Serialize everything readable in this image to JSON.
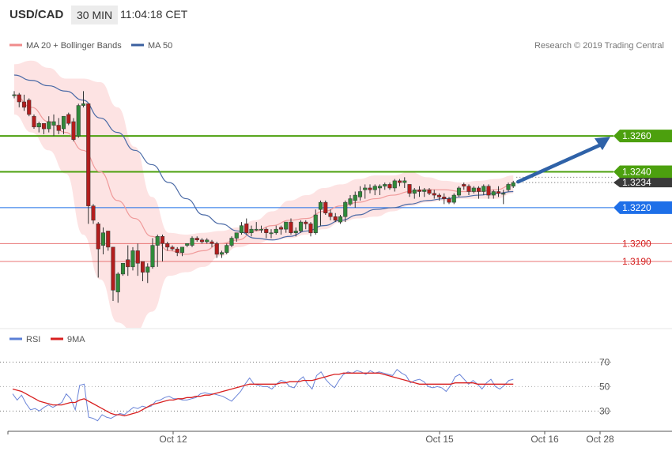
{
  "header": {
    "symbol": "USD/CAD",
    "timeframe": "30 MIN",
    "time": "11:04:18 CET"
  },
  "legend_main": [
    {
      "label": "MA 20 + Bollinger Bands",
      "color": "#f08c8c"
    },
    {
      "label": "MA 50",
      "color": "#3a5f9f"
    }
  ],
  "research_credit": "Research © 2019 Trading Central",
  "legend_rsi": [
    {
      "label": "RSI",
      "color": "#5b7fd6"
    },
    {
      "label": "9MA",
      "color": "#d81f1f"
    }
  ],
  "colors": {
    "green_level": "#4ca00e",
    "blue_level": "#1e6fe8",
    "red_level": "#e87474",
    "arrow": "#2f62a8",
    "candle": "#b31d1d",
    "candle_up": "#2f8a3a",
    "band_fill": "#fde3e3",
    "rsi": "#6b85d8",
    "rsi_ma": "#d81f1f",
    "last_price_badge": "#3a3a3a"
  },
  "chart_data": [
    {
      "type": "candlestick",
      "title": "USD/CAD 30 MIN",
      "ylim": [
        1.3153,
        1.3305
      ],
      "x_tick_labels": [
        "Oct 12",
        "Oct 15",
        "Oct 16",
        "Oct 28"
      ],
      "levels": [
        {
          "value": 1.326,
          "label": "1.3260",
          "kind": "resistance",
          "color": "green"
        },
        {
          "value": 1.324,
          "label": "1.3240",
          "kind": "resistance",
          "color": "green"
        },
        {
          "value": 1.3234,
          "label": "1.3234",
          "kind": "last_price",
          "color": "dark"
        },
        {
          "value": 1.322,
          "label": "1.3220",
          "kind": "pivot",
          "color": "blue"
        },
        {
          "value": 1.32,
          "label": "1.3200",
          "kind": "support",
          "color": "red"
        },
        {
          "value": 1.319,
          "label": "1.3190",
          "kind": "support",
          "color": "red"
        }
      ],
      "ohlc": [
        [
          1.3283,
          1.3285,
          1.3281,
          1.3283
        ],
        [
          1.3283,
          1.3284,
          1.3276,
          1.3279
        ],
        [
          1.3279,
          1.3283,
          1.3274,
          1.3276
        ],
        [
          1.328,
          1.3281,
          1.3271,
          1.3272
        ],
        [
          1.3271,
          1.3272,
          1.3264,
          1.3265
        ],
        [
          1.3265,
          1.3268,
          1.3262,
          1.3267
        ],
        [
          1.3267,
          1.3267,
          1.3261,
          1.3264
        ],
        [
          1.3264,
          1.3271,
          1.3262,
          1.3268
        ],
        [
          1.3266,
          1.3272,
          1.326,
          1.3268
        ],
        [
          1.3266,
          1.327,
          1.3261,
          1.3263
        ],
        [
          1.3264,
          1.3271,
          1.3261,
          1.3271
        ],
        [
          1.3272,
          1.3273,
          1.3266,
          1.3267
        ],
        [
          1.3268,
          1.327,
          1.3257,
          1.3258
        ],
        [
          1.326,
          1.3278,
          1.3259,
          1.3277
        ],
        [
          1.3277,
          1.3285,
          1.3276,
          1.3278
        ],
        [
          1.3278,
          1.3278,
          1.3211,
          1.3221
        ],
        [
          1.3221,
          1.3222,
          1.3211,
          1.3213
        ],
        [
          1.3211,
          1.3212,
          1.3181,
          1.3197
        ],
        [
          1.3199,
          1.3209,
          1.3194,
          1.3206
        ],
        [
          1.3207,
          1.3207,
          1.3196,
          1.3198
        ],
        [
          1.3198,
          1.3198,
          1.3168,
          1.3174
        ],
        [
          1.3173,
          1.3184,
          1.3167,
          1.3183
        ],
        [
          1.3183,
          1.3189,
          1.3182,
          1.3189
        ],
        [
          1.3191,
          1.3199,
          1.3182,
          1.3187
        ],
        [
          1.3187,
          1.3198,
          1.3185,
          1.3196
        ],
        [
          1.3196,
          1.32,
          1.3182,
          1.3189
        ],
        [
          1.319,
          1.319,
          1.3179,
          1.3184
        ],
        [
          1.3184,
          1.3189,
          1.3178,
          1.3187
        ],
        [
          1.3187,
          1.3203,
          1.3186,
          1.3199
        ],
        [
          1.3199,
          1.3205,
          1.3187,
          1.3204
        ],
        [
          1.3204,
          1.3205,
          1.319,
          1.32
        ],
        [
          1.32,
          1.3201,
          1.3196,
          1.3198
        ],
        [
          1.3198,
          1.3199,
          1.3196,
          1.3197
        ],
        [
          1.3197,
          1.3198,
          1.3193,
          1.3195
        ],
        [
          1.3195,
          1.3198,
          1.3193,
          1.3198
        ],
        [
          1.3199,
          1.32,
          1.3198,
          1.32
        ],
        [
          1.3199,
          1.3204,
          1.3198,
          1.3203
        ],
        [
          1.3203,
          1.3204,
          1.3201,
          1.3202
        ],
        [
          1.3202,
          1.3203,
          1.32,
          1.3201
        ],
        [
          1.3201,
          1.3203,
          1.32,
          1.3202
        ],
        [
          1.3201,
          1.3202,
          1.3198,
          1.32
        ],
        [
          1.32,
          1.3201,
          1.3192,
          1.3194
        ],
        [
          1.3194,
          1.3196,
          1.3192,
          1.3195
        ],
        [
          1.3195,
          1.32,
          1.3194,
          1.3199
        ],
        [
          1.3199,
          1.3204,
          1.3198,
          1.3203
        ],
        [
          1.3203,
          1.3206,
          1.3201,
          1.3206
        ],
        [
          1.3206,
          1.3212,
          1.3205,
          1.321
        ],
        [
          1.3211,
          1.3214,
          1.3205,
          1.3206
        ],
        [
          1.3206,
          1.321,
          1.3204,
          1.3208
        ],
        [
          1.3208,
          1.3212,
          1.3207,
          1.3208
        ],
        [
          1.3208,
          1.321,
          1.3206,
          1.3208
        ],
        [
          1.3208,
          1.3209,
          1.3203,
          1.3206
        ],
        [
          1.3206,
          1.3208,
          1.3203,
          1.3206
        ],
        [
          1.3206,
          1.321,
          1.3205,
          1.3208
        ],
        [
          1.3209,
          1.321,
          1.3205,
          1.3208
        ],
        [
          1.3208,
          1.3212,
          1.3206,
          1.3212
        ],
        [
          1.3212,
          1.3214,
          1.3205,
          1.3206
        ],
        [
          1.3206,
          1.3209,
          1.3204,
          1.3207
        ],
        [
          1.3207,
          1.3213,
          1.3206,
          1.3212
        ],
        [
          1.3212,
          1.3213,
          1.3208,
          1.3211
        ],
        [
          1.3211,
          1.3212,
          1.3204,
          1.3206
        ],
        [
          1.3206,
          1.3219,
          1.3205,
          1.3216
        ],
        [
          1.3219,
          1.3224,
          1.321,
          1.3223
        ],
        [
          1.3223,
          1.3224,
          1.3216,
          1.3217
        ],
        [
          1.3217,
          1.3219,
          1.3213,
          1.3215
        ],
        [
          1.3215,
          1.3217,
          1.3212,
          1.3213
        ],
        [
          1.3212,
          1.3216,
          1.3211,
          1.3215
        ],
        [
          1.3215,
          1.3224,
          1.3212,
          1.3223
        ],
        [
          1.3222,
          1.3227,
          1.3221,
          1.3225
        ],
        [
          1.3224,
          1.3229,
          1.322,
          1.3227
        ],
        [
          1.3226,
          1.3232,
          1.3224,
          1.3229
        ],
        [
          1.323,
          1.3233,
          1.3225,
          1.3231
        ],
        [
          1.3231,
          1.3233,
          1.3228,
          1.323
        ],
        [
          1.323,
          1.3233,
          1.3227,
          1.3232
        ],
        [
          1.3231,
          1.3233,
          1.3227,
          1.3232
        ],
        [
          1.3232,
          1.3234,
          1.323,
          1.3233
        ],
        [
          1.3233,
          1.3234,
          1.323,
          1.3231
        ],
        [
          1.3231,
          1.3236,
          1.3229,
          1.3235
        ],
        [
          1.3235,
          1.3236,
          1.3232,
          1.3234
        ],
        [
          1.3234,
          1.3237,
          1.3231,
          1.3235
        ],
        [
          1.3233,
          1.3233,
          1.3226,
          1.3228
        ],
        [
          1.3228,
          1.3231,
          1.3225,
          1.323
        ],
        [
          1.323,
          1.3232,
          1.3226,
          1.3229
        ],
        [
          1.3229,
          1.3231,
          1.3226,
          1.323
        ],
        [
          1.323,
          1.3231,
          1.3227,
          1.3228
        ],
        [
          1.3228,
          1.323,
          1.3225,
          1.3227
        ],
        [
          1.3227,
          1.3228,
          1.3224,
          1.3226
        ],
        [
          1.3226,
          1.3228,
          1.3222,
          1.3225
        ],
        [
          1.3225,
          1.3226,
          1.3222,
          1.3223
        ],
        [
          1.3223,
          1.3228,
          1.3222,
          1.3227
        ],
        [
          1.3227,
          1.3232,
          1.3226,
          1.3231
        ],
        [
          1.3233,
          1.3234,
          1.323,
          1.3232
        ],
        [
          1.3232,
          1.3233,
          1.3227,
          1.3229
        ],
        [
          1.3229,
          1.3232,
          1.3228,
          1.3231
        ],
        [
          1.3231,
          1.3232,
          1.3225,
          1.3229
        ],
        [
          1.3229,
          1.3233,
          1.3227,
          1.3232
        ],
        [
          1.3232,
          1.3233,
          1.3225,
          1.3227
        ],
        [
          1.3227,
          1.323,
          1.3225,
          1.3229
        ],
        [
          1.3229,
          1.3232,
          1.3226,
          1.3228
        ],
        [
          1.3228,
          1.323,
          1.3222,
          1.3228
        ],
        [
          1.323,
          1.3234,
          1.3229,
          1.3233
        ],
        [
          1.3232,
          1.3235,
          1.3231,
          1.3234
        ]
      ],
      "ma20_bollinger": {
        "ma20": [
          1.3283,
          1.3276,
          1.3268,
          1.3262,
          1.3252,
          1.324,
          1.3224,
          1.3214,
          1.3204,
          1.3196,
          1.3194,
          1.3196,
          1.32,
          1.3202,
          1.3207,
          1.321,
          1.3213,
          1.3214,
          1.3218,
          1.3221,
          1.3223,
          1.3225,
          1.3227,
          1.3229,
          1.323,
          1.323,
          1.3229,
          1.3229,
          1.323,
          1.3233
        ],
        "upper": [
          1.33,
          1.3302,
          1.3298,
          1.3292,
          1.3292,
          1.329,
          1.3276,
          1.3254,
          1.3226,
          1.3206,
          1.3205,
          1.3206,
          1.3207,
          1.3209,
          1.3213,
          1.3218,
          1.3224,
          1.3227,
          1.3231,
          1.3233,
          1.3236,
          1.3238,
          1.3238,
          1.324,
          1.3237,
          1.3235,
          1.3234,
          1.3235,
          1.3236,
          1.3238
        ],
        "lower": [
          1.3272,
          1.3262,
          1.3252,
          1.3239,
          1.3205,
          1.318,
          1.3156,
          1.315,
          1.3162,
          1.3182,
          1.3184,
          1.3187,
          1.3193,
          1.3198,
          1.32,
          1.3202,
          1.3203,
          1.3205,
          1.3208,
          1.3212,
          1.3214,
          1.3215,
          1.3218,
          1.3221,
          1.3223,
          1.3224,
          1.3225,
          1.3225,
          1.3225,
          1.3228
        ]
      },
      "ma50": [
        1.3294,
        1.3291,
        1.3288,
        1.3285,
        1.328,
        1.327,
        1.3262,
        1.3252,
        1.3244,
        1.3234,
        1.3225,
        1.3216,
        1.3211,
        1.3207,
        1.3203,
        1.3202,
        1.3204,
        1.3207,
        1.321,
        1.3213,
        1.3216,
        1.3219,
        1.322,
        1.3222,
        1.3224,
        1.3225,
        1.3226,
        1.3227,
        1.3228,
        1.3229
      ],
      "forecast_arrow": {
        "from": 1.3234,
        "to": 1.326
      }
    },
    {
      "type": "line",
      "title": "RSI",
      "ylim": [
        16,
        78
      ],
      "y_ticks": [
        30,
        50,
        70
      ],
      "dotted_levels": [
        30,
        70
      ],
      "series": [
        {
          "name": "RSI",
          "values": [
            44,
            39,
            43,
            36,
            31,
            32,
            30,
            33,
            35,
            33,
            35,
            37,
            44,
            40,
            31,
            51,
            52,
            25,
            24,
            22,
            27,
            25,
            24,
            26,
            28,
            27,
            30,
            33,
            32,
            34,
            33,
            34,
            38,
            39,
            41,
            42,
            40,
            40,
            39,
            39,
            40,
            41,
            44,
            45,
            44,
            44,
            43,
            42,
            40,
            38,
            42,
            46,
            52,
            57,
            52,
            51,
            50,
            50,
            48,
            52,
            55,
            54,
            50,
            49,
            55,
            58,
            52,
            48,
            59,
            62,
            56,
            52,
            49,
            55,
            60,
            62,
            61,
            63,
            62,
            60,
            63,
            61,
            62,
            61,
            60,
            59,
            64,
            61,
            59,
            53,
            55,
            56,
            54,
            50,
            49,
            50,
            49,
            46,
            51,
            58,
            60,
            56,
            52,
            55,
            52,
            48,
            53,
            56,
            50,
            48,
            51,
            55,
            56
          ]
        },
        {
          "name": "9MA",
          "values": [
            48,
            47,
            46,
            44,
            42,
            40,
            38,
            37,
            36,
            35,
            35,
            35,
            36,
            37,
            37,
            39,
            40,
            38,
            36,
            34,
            32,
            30,
            28,
            27,
            27,
            26,
            27,
            28,
            29,
            31,
            33,
            35,
            36,
            37,
            38,
            39,
            39,
            40,
            40,
            41,
            41,
            42,
            42,
            43,
            43,
            44,
            45,
            46,
            47,
            48,
            49,
            50,
            51,
            52,
            52,
            52,
            52,
            52,
            52,
            52,
            53,
            53,
            54,
            54,
            54,
            55,
            55,
            55,
            56,
            57,
            58,
            59,
            60,
            60,
            61,
            61,
            61,
            61,
            61,
            61,
            61,
            61,
            61,
            60,
            59,
            58,
            57,
            56,
            55,
            54,
            53,
            52,
            52,
            52,
            52,
            52,
            52,
            52,
            52,
            53,
            53,
            53,
            53,
            53,
            52,
            52,
            52,
            52,
            52,
            52,
            52,
            52,
            52
          ]
        }
      ]
    }
  ]
}
